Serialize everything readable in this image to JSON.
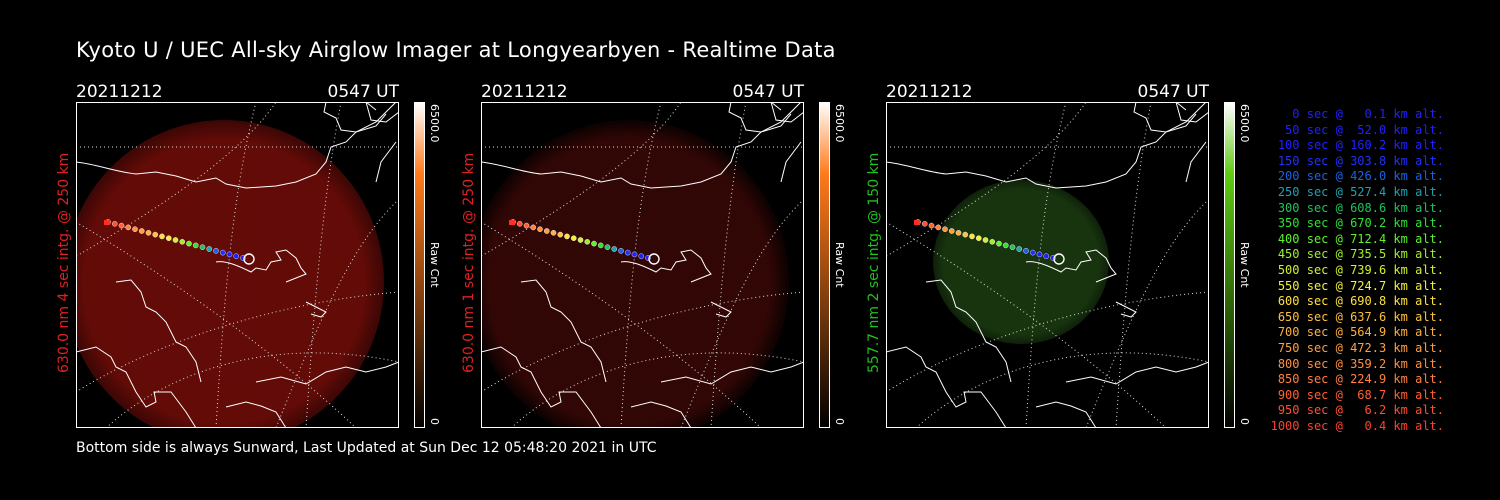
{
  "title": "Kyoto U / UEC All-sky Airglow Imager at Longyearbyen - Realtime Data",
  "footer": "Bottom side is always Sunward, Last Updated at Sun Dec 12 05:48:20 2021 in UTC",
  "panels": [
    {
      "date": "20211212",
      "time": "0547 UT",
      "ylabel": "630.0 nm 4 sec intg. @ 250 km",
      "ylabel_color": "#e02020",
      "cbar_max": "6500.0",
      "cbar_min": "0",
      "cbar_unit": "Raw Cnt",
      "glow_color": "#6a0c08",
      "glow_opacity": 0.92,
      "cbar_top": "#ff7a1a"
    },
    {
      "date": "20211212",
      "time": "0547 UT",
      "ylabel": "630.0 nm 1 sec intg. @ 250 km",
      "ylabel_color": "#e02020",
      "cbar_max": "6500.0",
      "cbar_min": "0",
      "cbar_unit": "Raw Cnt",
      "glow_color": "#3a0806",
      "glow_opacity": 0.85,
      "cbar_top": "#ff7a1a"
    },
    {
      "date": "20211212",
      "time": "0547 UT",
      "ylabel": "557.7 nm 2 sec intg. @ 150 km",
      "ylabel_color": "#20c020",
      "cbar_max": "6500.0",
      "cbar_min": "0",
      "cbar_unit": "Raw Cnt",
      "glow_color": "#1a3a10",
      "glow_opacity": 0.9,
      "cbar_top": "#5fcc10"
    }
  ],
  "legend": [
    {
      "text": "0 sec @   0.1 km alt.",
      "color": "#2020ff"
    },
    {
      "text": "50 sec @  52.0 km alt.",
      "color": "#2020ff"
    },
    {
      "text": "100 sec @ 160.2 km alt.",
      "color": "#2020ff"
    },
    {
      "text": "150 sec @ 303.8 km alt.",
      "color": "#2030ff"
    },
    {
      "text": "200 sec @ 426.0 km alt.",
      "color": "#2060e0"
    },
    {
      "text": "250 sec @ 527.4 km alt.",
      "color": "#20a0b0"
    },
    {
      "text": "300 sec @ 608.6 km alt.",
      "color": "#20c060"
    },
    {
      "text": "350 sec @ 670.2 km alt.",
      "color": "#30e030"
    },
    {
      "text": "400 sec @ 712.4 km alt.",
      "color": "#60f030"
    },
    {
      "text": "450 sec @ 735.5 km alt.",
      "color": "#a0f030"
    },
    {
      "text": "500 sec @ 739.6 km alt.",
      "color": "#d0f030"
    },
    {
      "text": "550 sec @ 724.7 km alt.",
      "color": "#f0f040"
    },
    {
      "text": "600 sec @ 690.8 km alt.",
      "color": "#ffe040"
    },
    {
      "text": "650 sec @ 637.6 km alt.",
      "color": "#ffc040"
    },
    {
      "text": "700 sec @ 564.9 km alt.",
      "color": "#ffb040"
    },
    {
      "text": "750 sec @ 472.3 km alt.",
      "color": "#ffa040"
    },
    {
      "text": "800 sec @ 359.2 km alt.",
      "color": "#ff9040"
    },
    {
      "text": "850 sec @ 224.9 km alt.",
      "color": "#ff8040"
    },
    {
      "text": "900 sec @  68.7 km alt.",
      "color": "#ff6030"
    },
    {
      "text": "950 sec @   6.2 km alt.",
      "color": "#ff5030"
    },
    {
      "text": "1000 sec @   0.4 km alt.",
      "color": "#ff4030"
    }
  ]
}
